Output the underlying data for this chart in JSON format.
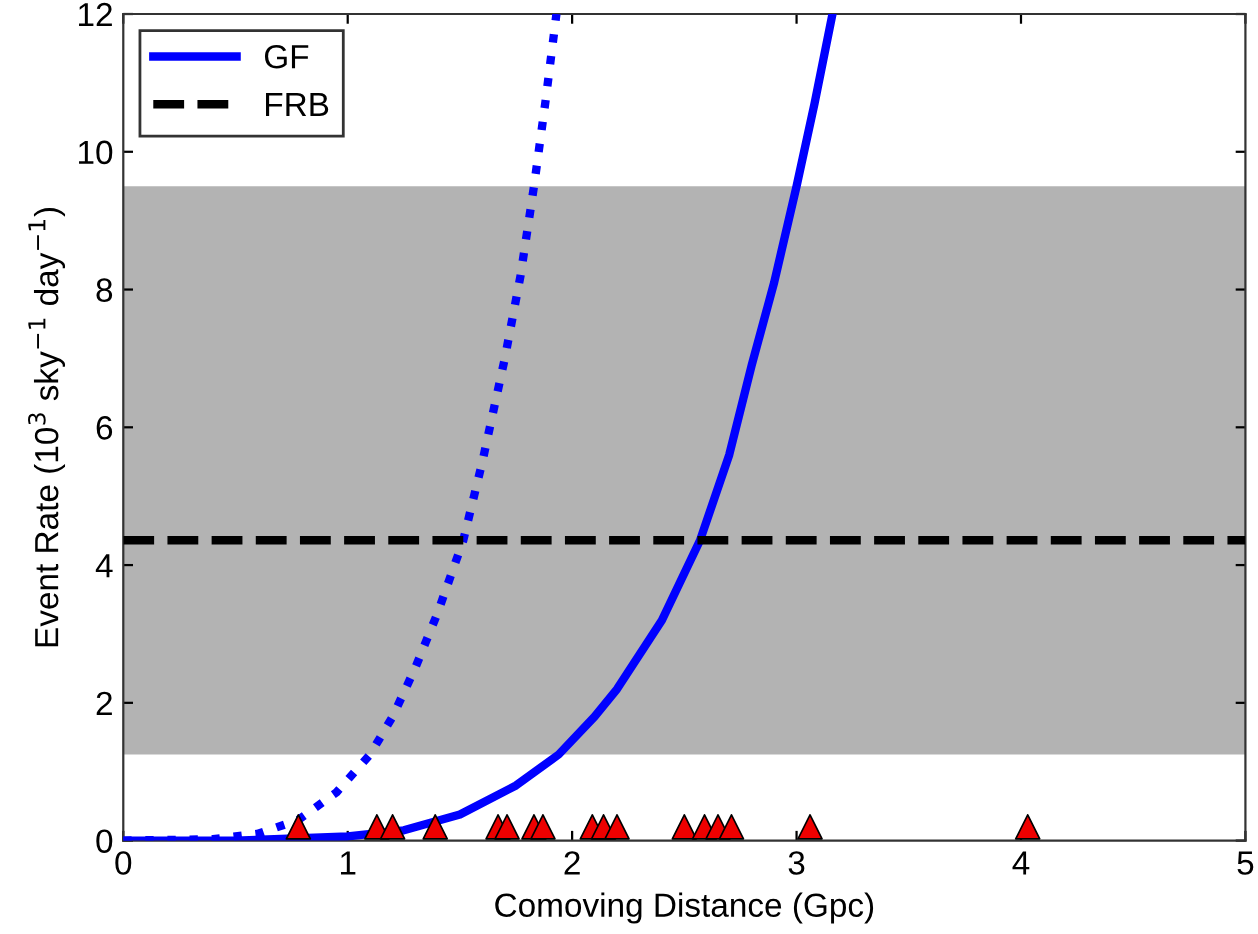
{
  "chart_data": {
    "type": "line",
    "xlabel": "Comoving Distance (Gpc)",
    "ylabel": "Event Rate (10$^{3}$ sky$^{−1}$ day$^{−1}$)",
    "series": [
      {
        "name": "GF",
        "color": "#0000ff",
        "line_style": "solid",
        "x": [
          0,
          0.5,
          1.0,
          1.25,
          1.5,
          1.75,
          1.94,
          2.1,
          2.2,
          2.4,
          2.57,
          2.7,
          2.8,
          2.9,
          3.0,
          3.08,
          3.16
        ],
        "values": [
          0,
          0.0,
          0.06,
          0.15,
          0.38,
          0.8,
          1.25,
          1.8,
          2.2,
          3.2,
          4.36,
          5.6,
          6.9,
          8.1,
          9.5,
          10.7,
          12
        ]
      },
      {
        "color": "#0000ff",
        "line_style": "dotted",
        "x": [
          0,
          0.4,
          0.6,
          0.78,
          0.95,
          1.1,
          1.2,
          1.3,
          1.4,
          1.515,
          1.6,
          1.7,
          1.77,
          1.83,
          1.88,
          1.93
        ],
        "values": [
          0,
          0.02,
          0.1,
          0.3,
          0.7,
          1.25,
          1.8,
          2.5,
          3.3,
          4.36,
          5.5,
          7.0,
          8.2,
          9.5,
          10.7,
          12
        ]
      },
      {
        "type": "scatter",
        "marker": "triangle",
        "color": "#ee0000",
        "x": [
          0.78,
          1.13,
          1.2,
          1.39,
          1.67,
          1.71,
          1.83,
          1.87,
          2.09,
          2.14,
          2.2,
          2.5,
          2.59,
          2.65,
          2.71,
          3.06,
          4.03
        ],
        "values": [
          0.2,
          0.2,
          0.2,
          0.2,
          0.2,
          0.2,
          0.2,
          0.2,
          0.2,
          0.2,
          0.2,
          0.2,
          0.2,
          0.2,
          0.2,
          0.2,
          0.2
        ]
      }
    ],
    "ref_lines": [
      {
        "axis": "y",
        "value": 4.36,
        "label": "FRB",
        "color": "#000000",
        "line_style": "dashed"
      }
    ],
    "bands": [
      {
        "axis": "y",
        "from": 1.25,
        "to": 9.5,
        "color": "#b3b3b3"
      }
    ],
    "xlim": [
      0,
      5
    ],
    "ylim": [
      0,
      12
    ],
    "xticks": [
      0,
      1,
      2,
      3,
      4,
      5
    ],
    "yticks": [
      0,
      2,
      4,
      6,
      8,
      10,
      12
    ],
    "grid": false,
    "legend": "top left"
  }
}
